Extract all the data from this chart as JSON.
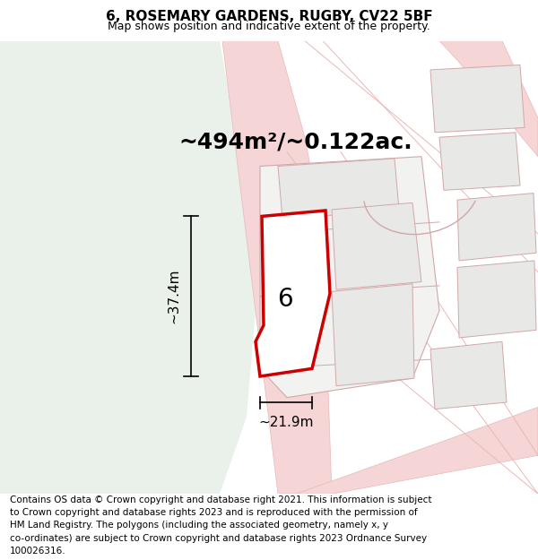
{
  "title": "6, ROSEMARY GARDENS, RUGBY, CV22 5BF",
  "subtitle": "Map shows position and indicative extent of the property.",
  "area_text": "~494m²/~0.122ac.",
  "width_text": "~21.9m",
  "height_text": "~37.4m",
  "label_number": "6",
  "footer_lines": [
    "Contains OS data © Crown copyright and database right 2021. This information is subject",
    "to Crown copyright and database rights 2023 and is reproduced with the permission of",
    "HM Land Registry. The polygons (including the associated geometry, namely x, y",
    "co-ordinates) are subject to Crown copyright and database rights 2023 Ordnance Survey",
    "100026316."
  ],
  "bg_white": "#f9f9f7",
  "bg_green": "#eaf0ea",
  "road_fill": "#f5d5d5",
  "road_edge": "#e8b8b8",
  "building_fill": "#e8e8e6",
  "building_edge": "#d8b0b0",
  "plot_fill": "#f2f2f0",
  "plot_edge": "#d0a8a8",
  "highlight_color": "#cc0000",
  "highlight_fill": "#ffffff",
  "title_fontsize": 11,
  "subtitle_fontsize": 9,
  "area_fontsize": 18,
  "label_fontsize": 20,
  "dim_fontsize": 11,
  "footer_fontsize": 7.5
}
